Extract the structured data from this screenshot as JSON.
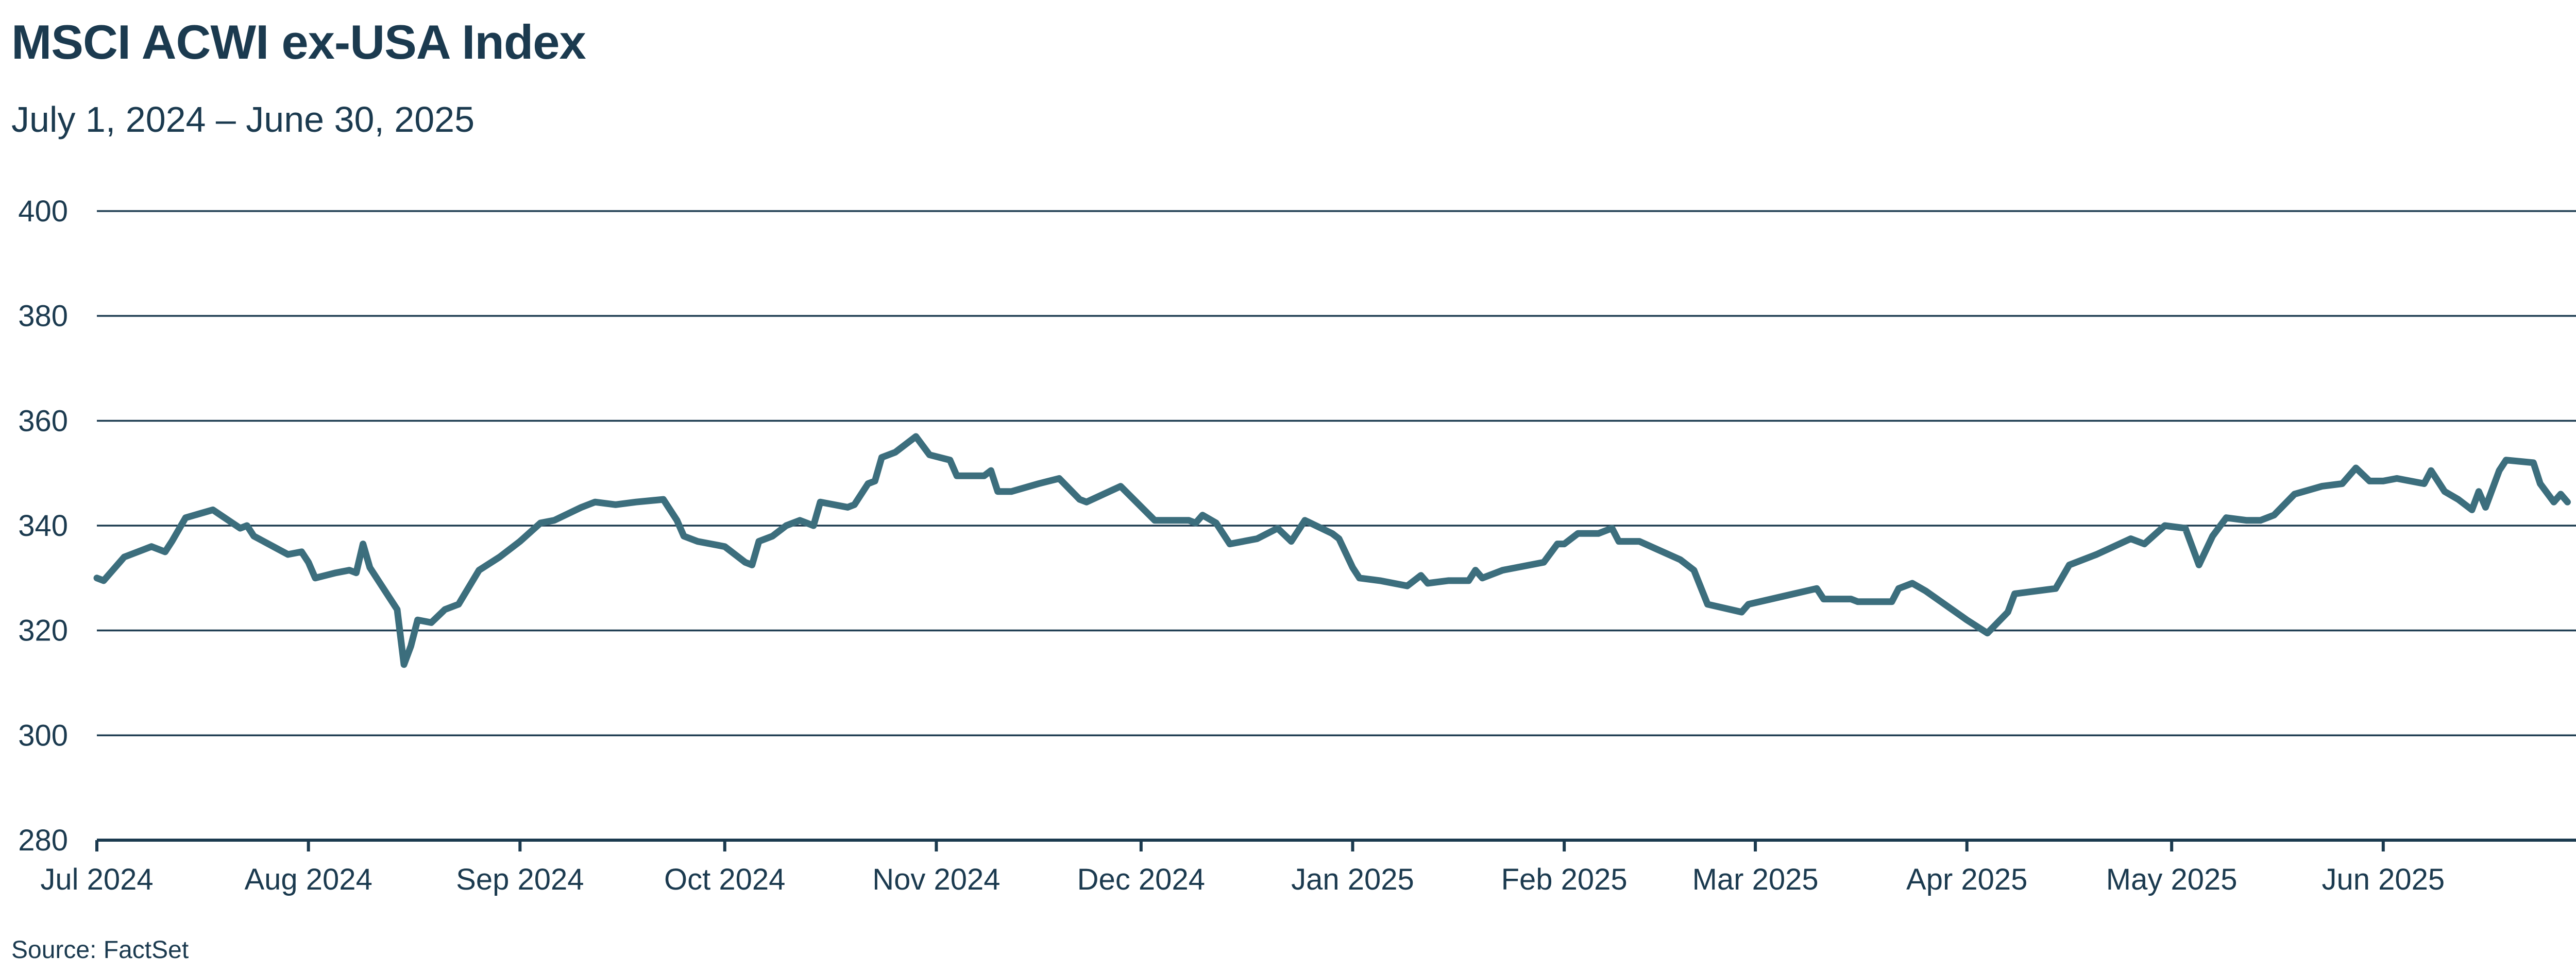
{
  "chart_data": {
    "type": "line",
    "title": "MSCI ACWI ex-USA Index",
    "subtitle": "July 1, 2024 – June 30, 2025",
    "source": "Source: FactSet",
    "xlabel": "",
    "ylabel": "",
    "ylim": [
      280,
      400
    ],
    "yticks": [
      280,
      300,
      320,
      340,
      360,
      380,
      400
    ],
    "xlim": [
      "2024-07-01",
      "2025-06-30"
    ],
    "xticks": [
      {
        "date": "2024-07-01",
        "label": "Jul 2024"
      },
      {
        "date": "2024-08-01",
        "label": "Aug 2024"
      },
      {
        "date": "2024-09-01",
        "label": "Sep 2024"
      },
      {
        "date": "2024-10-01",
        "label": "Oct 2024"
      },
      {
        "date": "2024-11-01",
        "label": "Nov 2024"
      },
      {
        "date": "2024-12-01",
        "label": "Dec 2024"
      },
      {
        "date": "2025-01-01",
        "label": "Jan 2025"
      },
      {
        "date": "2025-02-01",
        "label": "Feb 2025"
      },
      {
        "date": "2025-03-01",
        "label": "Mar 2025"
      },
      {
        "date": "2025-04-01",
        "label": "Apr 2025"
      },
      {
        "date": "2025-05-01",
        "label": "May 2025"
      },
      {
        "date": "2025-06-01",
        "label": "Jun 2025"
      }
    ],
    "grid": true,
    "line_color": "#3c6e7d",
    "text_color": "#1b3a4f",
    "series": [
      {
        "points": [
          [
            "2024-07-01",
            330
          ],
          [
            "2024-07-02",
            329.5
          ],
          [
            "2024-07-05",
            334
          ],
          [
            "2024-07-09",
            336
          ],
          [
            "2024-07-11",
            335
          ],
          [
            "2024-07-12",
            337
          ],
          [
            "2024-07-14",
            341.5
          ],
          [
            "2024-07-18",
            343
          ],
          [
            "2024-07-22",
            339.5
          ],
          [
            "2024-07-23",
            340
          ],
          [
            "2024-07-24",
            338
          ],
          [
            "2024-07-29",
            334.5
          ],
          [
            "2024-07-31",
            335
          ],
          [
            "2024-08-01",
            333
          ],
          [
            "2024-08-02",
            330
          ],
          [
            "2024-08-05",
            331
          ],
          [
            "2024-08-07",
            331.5
          ],
          [
            "2024-08-08",
            331
          ],
          [
            "2024-08-09",
            336.5
          ],
          [
            "2024-08-10",
            332
          ],
          [
            "2024-08-13",
            326
          ],
          [
            "2024-08-14",
            324
          ],
          [
            "2024-08-15",
            313.5
          ],
          [
            "2024-08-16",
            317
          ],
          [
            "2024-08-17",
            322
          ],
          [
            "2024-08-19",
            321.5
          ],
          [
            "2024-08-21",
            324
          ],
          [
            "2024-08-23",
            325
          ],
          [
            "2024-08-26",
            331.5
          ],
          [
            "2024-08-29",
            334
          ],
          [
            "2024-09-01",
            337
          ],
          [
            "2024-09-04",
            340.5
          ],
          [
            "2024-09-06",
            341
          ],
          [
            "2024-09-10",
            343.5
          ],
          [
            "2024-09-12",
            344.5
          ],
          [
            "2024-09-15",
            344
          ],
          [
            "2024-09-18",
            344.5
          ],
          [
            "2024-09-22",
            345
          ],
          [
            "2024-09-24",
            341
          ],
          [
            "2024-09-25",
            338
          ],
          [
            "2024-09-27",
            337
          ],
          [
            "2024-10-01",
            336
          ],
          [
            "2024-10-04",
            333
          ],
          [
            "2024-10-05",
            332.5
          ],
          [
            "2024-10-06",
            337
          ],
          [
            "2024-10-08",
            338
          ],
          [
            "2024-10-10",
            340
          ],
          [
            "2024-10-12",
            341
          ],
          [
            "2024-10-14",
            340
          ],
          [
            "2024-10-15",
            344.5
          ],
          [
            "2024-10-19",
            343.5
          ],
          [
            "2024-10-20",
            344
          ],
          [
            "2024-10-22",
            348
          ],
          [
            "2024-10-23",
            348.5
          ],
          [
            "2024-10-24",
            353
          ],
          [
            "2024-10-26",
            354
          ],
          [
            "2024-10-29",
            357
          ],
          [
            "2024-10-31",
            353.5
          ],
          [
            "2024-11-03",
            352.5
          ],
          [
            "2024-11-04",
            349.5
          ],
          [
            "2024-11-08",
            349.5
          ],
          [
            "2024-11-09",
            350.5
          ],
          [
            "2024-11-10",
            346.5
          ],
          [
            "2024-11-12",
            346.5
          ],
          [
            "2024-11-16",
            348
          ],
          [
            "2024-11-19",
            349
          ],
          [
            "2024-11-22",
            345
          ],
          [
            "2024-11-23",
            344.5
          ],
          [
            "2024-11-28",
            347.5
          ],
          [
            "2024-12-03",
            341
          ],
          [
            "2024-12-08",
            341
          ],
          [
            "2024-12-09",
            340.5
          ],
          [
            "2024-12-10",
            342
          ],
          [
            "2024-12-12",
            340.5
          ],
          [
            "2024-12-14",
            336.5
          ],
          [
            "2024-12-18",
            337.5
          ],
          [
            "2024-12-21",
            339.5
          ],
          [
            "2024-12-23",
            337
          ],
          [
            "2024-12-25",
            341
          ],
          [
            "2024-12-29",
            338.5
          ],
          [
            "2024-12-30",
            337.5
          ],
          [
            "2025-01-01",
            332
          ],
          [
            "2025-01-02",
            330
          ],
          [
            "2025-01-05",
            329.5
          ],
          [
            "2025-01-09",
            328.5
          ],
          [
            "2025-01-11",
            330.5
          ],
          [
            "2025-01-12",
            329
          ],
          [
            "2025-01-15",
            329.5
          ],
          [
            "2025-01-18",
            329.5
          ],
          [
            "2025-01-19",
            331.5
          ],
          [
            "2025-01-20",
            330
          ],
          [
            "2025-01-23",
            331.5
          ],
          [
            "2025-01-29",
            333
          ],
          [
            "2025-01-31",
            336.5
          ],
          [
            "2025-02-01",
            336.5
          ],
          [
            "2025-02-03",
            338.5
          ],
          [
            "2025-02-06",
            338.5
          ],
          [
            "2025-02-08",
            339.5
          ],
          [
            "2025-02-09",
            337
          ],
          [
            "2025-02-12",
            337
          ],
          [
            "2025-02-18",
            333.5
          ],
          [
            "2025-02-20",
            331.5
          ],
          [
            "2025-02-22",
            325
          ],
          [
            "2025-02-27",
            323.5
          ],
          [
            "2025-02-28",
            325
          ],
          [
            "2025-03-05",
            326.5
          ],
          [
            "2025-03-10",
            328
          ],
          [
            "2025-03-11",
            326
          ],
          [
            "2025-03-15",
            326
          ],
          [
            "2025-03-16",
            325.5
          ],
          [
            "2025-03-21",
            325.5
          ],
          [
            "2025-03-22",
            328
          ],
          [
            "2025-03-24",
            329
          ],
          [
            "2025-03-26",
            327.5
          ],
          [
            "2025-04-01",
            322
          ],
          [
            "2025-04-04",
            319.5
          ],
          [
            "2025-04-07",
            323.5
          ],
          [
            "2025-04-08",
            327
          ],
          [
            "2025-04-14",
            328
          ],
          [
            "2025-04-16",
            332.5
          ],
          [
            "2025-04-20",
            334.5
          ],
          [
            "2025-04-25",
            337.5
          ],
          [
            "2025-04-27",
            336.5
          ],
          [
            "2025-04-30",
            340
          ],
          [
            "2025-05-03",
            339.5
          ],
          [
            "2025-05-05",
            332.5
          ],
          [
            "2025-05-07",
            338
          ],
          [
            "2025-05-09",
            341.5
          ],
          [
            "2025-05-12",
            341
          ],
          [
            "2025-05-14",
            341
          ],
          [
            "2025-05-16",
            342
          ],
          [
            "2025-05-19",
            346
          ],
          [
            "2025-05-23",
            347.5
          ],
          [
            "2025-05-26",
            348
          ],
          [
            "2025-05-28",
            351
          ],
          [
            "2025-05-30",
            348.5
          ],
          [
            "2025-06-01",
            348.5
          ],
          [
            "2025-06-03",
            349
          ],
          [
            "2025-06-07",
            348
          ],
          [
            "2025-06-08",
            350.5
          ],
          [
            "2025-06-10",
            346.5
          ],
          [
            "2025-06-12",
            345
          ],
          [
            "2025-06-14",
            343
          ],
          [
            "2025-06-15",
            346.5
          ],
          [
            "2025-06-16",
            343.5
          ],
          [
            "2025-06-18",
            350.5
          ],
          [
            "2025-06-19",
            352.5
          ],
          [
            "2025-06-23",
            352
          ],
          [
            "2025-06-24",
            348
          ],
          [
            "2025-06-26",
            344.5
          ],
          [
            "2025-06-27",
            346
          ],
          [
            "2025-06-28",
            344.5
          ]
        ]
      }
    ]
  }
}
